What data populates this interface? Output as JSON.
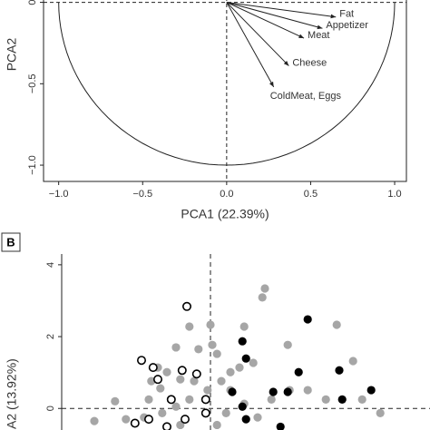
{
  "chart_data": [
    {
      "type": "vector",
      "xlabel": "PCA1 (22.39%)",
      "ylabel": "PCA2",
      "xlim": [
        -1.09,
        1.07
      ],
      "ylim": [
        -1.1,
        0.07
      ],
      "xticks": [
        {
          "value": -1.0,
          "label": "−1.0"
        },
        {
          "value": -0.5,
          "label": "−0.5"
        },
        {
          "value": 0,
          "label": "0.0"
        },
        {
          "value": 0.5,
          "label": "0.5"
        },
        {
          "value": 1.0,
          "label": "1.0"
        }
      ],
      "yticks": [
        0,
        {
          "value": -0.5,
          "label": "−0.5"
        },
        {
          "value": -1.0,
          "label": "−1.0"
        }
      ],
      "color": "#222222",
      "arrows": [
        {
          "label": "Fat",
          "x": 0.65,
          "y": -0.09
        },
        {
          "label": "Appetizer",
          "x": 0.57,
          "y": -0.16
        },
        {
          "label": "Meat",
          "x": 0.46,
          "y": -0.22
        },
        {
          "label": "Cheese",
          "x": 0.37,
          "y": -0.39
        },
        {
          "label": "ColdMeat, Eggs",
          "x": 0.28,
          "y": -0.52
        }
      ]
    },
    {
      "type": "scatter",
      "panel_label": "B",
      "ylabel": "A2 (13.92%)",
      "xlim": [
        -3.8,
        6.05
      ],
      "ylim": [
        -0.6,
        4.3
      ],
      "yticks": [
        4,
        2,
        0
      ],
      "series": [
        {
          "color": "#a6a6a6",
          "style": "filled",
          "x": [
            1.5,
            1.43,
            0,
            -0.58,
            0.93,
            0.05,
            0.18,
            2.13,
            3.48,
            3.93,
            1.18,
            0.8,
            0.55,
            -0.33,
            -0.95,
            -1.45,
            -1.2,
            -1.63,
            -1.7,
            -1.38,
            -0.83,
            -0.45,
            0.3,
            0.55,
            -0.08,
            -0.58,
            -0.95,
            -1.33,
            -1.83,
            -2.33,
            -2.63,
            -3.2,
            0.43,
            0.93,
            1.68,
            2.18,
            2.68,
            3.18,
            4.18,
            4.68,
            -0.83,
            0.18,
            1.3
          ],
          "values": [
            3.34,
            3.09,
            2.33,
            2.28,
            2.28,
            1.77,
            1.52,
            1.77,
            2.33,
            1.32,
            1.27,
            1.14,
            1.01,
            1.65,
            1.7,
            1.14,
            1.01,
            0.76,
            0.25,
            0.56,
            0.81,
            0.76,
            0.76,
            0.51,
            0.51,
            0.25,
            0.05,
            -0.13,
            -0.25,
            -0.3,
            0.2,
            -0.35,
            -0.13,
            0.13,
            0.25,
            0.51,
            0.51,
            0.25,
            0.25,
            -0.13,
            -0.46,
            -0.46,
            -0.25
          ]
        },
        {
          "color": "#000000",
          "style": "filled",
          "x": [
            2.68,
            0.88,
            0.98,
            3.55,
            2.43,
            1.73,
            2.13,
            3.63,
            4.43,
            0.6,
            0.88,
            0.98,
            1.93
          ],
          "values": [
            2.48,
            1.87,
            1.39,
            1.06,
            1.01,
            0.46,
            0.46,
            0.25,
            0.51,
            0.46,
            0.05,
            -0.3,
            -0.51
          ]
        },
        {
          "color": "#000000",
          "style": "open",
          "x": [
            -0.65,
            -1.9,
            -1.58,
            -1.45,
            -0.78,
            -0.38,
            -1.08,
            -0.13,
            -0.13,
            -2.08,
            -1.7,
            -0.7,
            -1.2
          ],
          "values": [
            2.84,
            1.34,
            1.14,
            0.81,
            1.06,
            0.96,
            0.25,
            0.25,
            -0.13,
            -0.41,
            -0.3,
            -0.3,
            -0.51
          ]
        }
      ]
    }
  ]
}
